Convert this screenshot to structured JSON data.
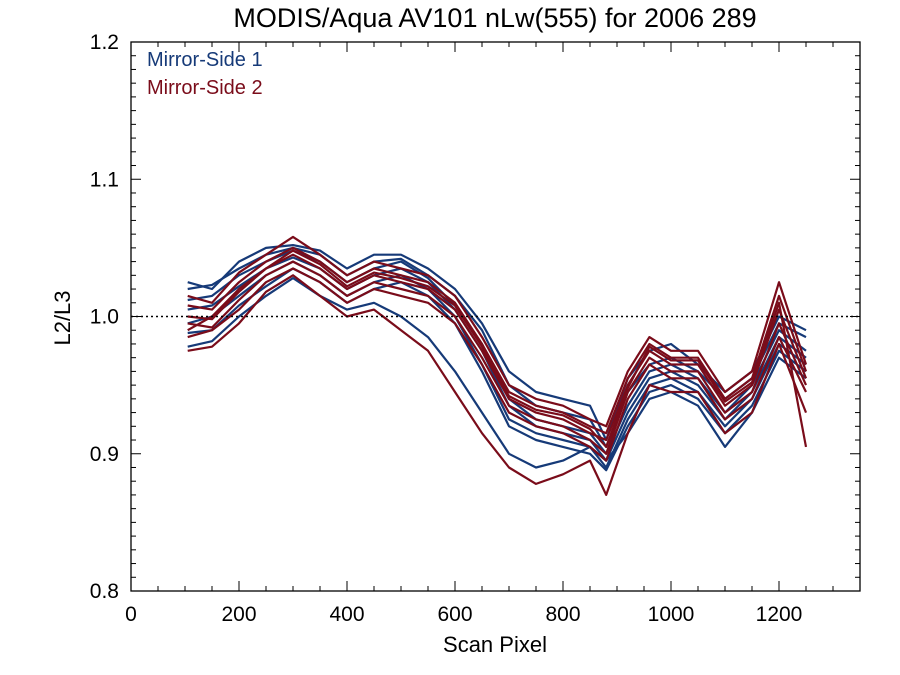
{
  "chart_data": {
    "type": "line",
    "title": "MODIS/Aqua AV101 nLw(555) for 2006 289",
    "xlabel": "Scan Pixel",
    "ylabel": "L2/L3",
    "xlim": [
      0,
      1350
    ],
    "ylim": [
      0.8,
      1.2
    ],
    "xticks": [
      0,
      200,
      400,
      600,
      800,
      1000,
      1200
    ],
    "yticks": [
      0.8,
      0.9,
      1.0,
      1.1,
      1.2
    ],
    "ytick_labels": [
      "0.8",
      "0.9",
      "1.0",
      "1.1",
      "1.2"
    ],
    "reference_line": {
      "y": 1.0,
      "style": "dotted"
    },
    "legend_position": "top-left",
    "colors": {
      "Mirror-Side 1": "#163a78",
      "Mirror-Side 2": "#7a0c1a"
    },
    "legend": [
      "Mirror-Side 1",
      "Mirror-Side 2"
    ],
    "x": [
      105,
      150,
      200,
      250,
      300,
      350,
      400,
      450,
      500,
      550,
      600,
      650,
      700,
      750,
      800,
      850,
      880,
      920,
      960,
      1000,
      1050,
      1100,
      1150,
      1200,
      1250
    ],
    "series": [
      {
        "group": "Mirror-Side 1",
        "values": [
          1.02,
          1.023,
          1.035,
          1.045,
          1.05,
          1.045,
          1.03,
          1.04,
          1.042,
          1.03,
          1.015,
          0.99,
          0.95,
          0.935,
          0.93,
          0.925,
          0.905,
          0.945,
          0.965,
          0.97,
          0.96,
          0.94,
          0.955,
          0.995,
          0.985
        ]
      },
      {
        "group": "Mirror-Side 1",
        "values": [
          1.012,
          1.015,
          1.03,
          1.04,
          1.048,
          1.04,
          1.025,
          1.035,
          1.04,
          1.028,
          1.008,
          0.98,
          0.94,
          0.925,
          0.92,
          0.915,
          0.9,
          0.935,
          0.96,
          0.965,
          0.955,
          0.93,
          0.95,
          0.99,
          0.975
        ]
      },
      {
        "group": "Mirror-Side 1",
        "values": [
          1.005,
          1.008,
          1.022,
          1.035,
          1.043,
          1.035,
          1.02,
          1.03,
          1.035,
          1.025,
          1.005,
          0.975,
          0.935,
          0.92,
          0.915,
          0.91,
          0.895,
          0.93,
          0.955,
          0.96,
          0.95,
          0.925,
          0.945,
          0.985,
          0.97
        ]
      },
      {
        "group": "Mirror-Side 1",
        "values": [
          0.995,
          1.0,
          1.015,
          1.03,
          1.04,
          1.03,
          1.015,
          1.025,
          1.03,
          1.02,
          1.0,
          0.965,
          0.925,
          0.915,
          0.91,
          0.905,
          0.89,
          0.925,
          0.95,
          0.955,
          0.945,
          0.92,
          0.94,
          0.98,
          0.965
        ]
      },
      {
        "group": "Mirror-Side 1",
        "values": [
          0.988,
          0.99,
          1.008,
          1.022,
          1.035,
          1.025,
          1.01,
          1.02,
          1.025,
          1.015,
          0.995,
          0.96,
          0.92,
          0.91,
          0.905,
          0.9,
          0.888,
          0.92,
          0.945,
          0.95,
          0.94,
          0.915,
          0.935,
          0.975,
          0.96
        ]
      },
      {
        "group": "Mirror-Side 1",
        "values": [
          0.978,
          0.982,
          1.0,
          1.015,
          1.028,
          1.015,
          1.005,
          1.01,
          1.0,
          0.985,
          0.96,
          0.93,
          0.9,
          0.89,
          0.895,
          0.905,
          0.895,
          0.915,
          0.94,
          0.945,
          0.935,
          0.905,
          0.93,
          0.97,
          0.955
        ]
      },
      {
        "group": "Mirror-Side 1",
        "values": [
          1.025,
          1.02,
          1.04,
          1.05,
          1.052,
          1.048,
          1.035,
          1.045,
          1.045,
          1.035,
          1.02,
          0.995,
          0.96,
          0.945,
          0.94,
          0.935,
          0.91,
          0.955,
          0.975,
          0.98,
          0.965,
          0.945,
          0.96,
          1.0,
          0.99
        ]
      },
      {
        "group": "Mirror-Side 2",
        "values": [
          1.015,
          1.01,
          1.032,
          1.045,
          1.058,
          1.045,
          1.03,
          1.04,
          1.035,
          1.03,
          1.015,
          0.985,
          0.95,
          0.94,
          0.935,
          0.925,
          0.92,
          0.96,
          0.985,
          0.975,
          0.975,
          0.945,
          0.96,
          1.025,
          0.965
        ]
      },
      {
        "group": "Mirror-Side 2",
        "values": [
          1.008,
          1.005,
          1.025,
          1.04,
          1.05,
          1.04,
          1.025,
          1.035,
          1.03,
          1.025,
          1.01,
          0.98,
          0.945,
          0.935,
          0.93,
          0.92,
          0.915,
          0.955,
          0.98,
          0.97,
          0.97,
          0.94,
          0.955,
          1.015,
          0.96
        ]
      },
      {
        "group": "Mirror-Side 2",
        "values": [
          1.0,
          0.998,
          1.018,
          1.035,
          1.045,
          1.035,
          1.02,
          1.03,
          1.025,
          1.02,
          1.005,
          0.975,
          0.94,
          0.93,
          0.925,
          0.915,
          0.91,
          0.95,
          0.975,
          0.965,
          0.965,
          0.935,
          0.95,
          1.005,
          0.955
        ]
      },
      {
        "group": "Mirror-Side 2",
        "values": [
          0.995,
          0.992,
          1.012,
          1.03,
          1.04,
          1.03,
          1.015,
          1.025,
          1.02,
          1.015,
          1.0,
          0.97,
          0.935,
          0.925,
          0.92,
          0.91,
          0.9,
          0.945,
          0.97,
          0.96,
          0.96,
          0.93,
          0.945,
          0.995,
          0.95
        ]
      },
      {
        "group": "Mirror-Side 2",
        "values": [
          0.985,
          0.99,
          1.005,
          1.025,
          1.035,
          1.025,
          1.01,
          1.02,
          1.015,
          1.01,
          0.995,
          0.965,
          0.93,
          0.92,
          0.915,
          0.905,
          0.895,
          0.94,
          0.965,
          0.955,
          0.955,
          0.925,
          0.94,
          0.985,
          0.945
        ]
      },
      {
        "group": "Mirror-Side 2",
        "values": [
          0.975,
          0.978,
          0.995,
          1.018,
          1.03,
          1.015,
          1.0,
          1.005,
          0.99,
          0.975,
          0.945,
          0.915,
          0.89,
          0.878,
          0.885,
          0.895,
          0.87,
          0.915,
          0.95,
          0.945,
          0.945,
          0.915,
          0.93,
          0.98,
          0.93
        ]
      },
      {
        "group": "Mirror-Side 2",
        "values": [
          0.99,
          1.0,
          1.02,
          1.035,
          1.048,
          1.038,
          1.022,
          1.032,
          1.028,
          1.022,
          1.008,
          0.978,
          0.942,
          0.932,
          0.928,
          0.918,
          0.905,
          0.948,
          0.978,
          0.968,
          0.968,
          0.938,
          0.952,
          1.01,
          0.905
        ]
      }
    ]
  }
}
